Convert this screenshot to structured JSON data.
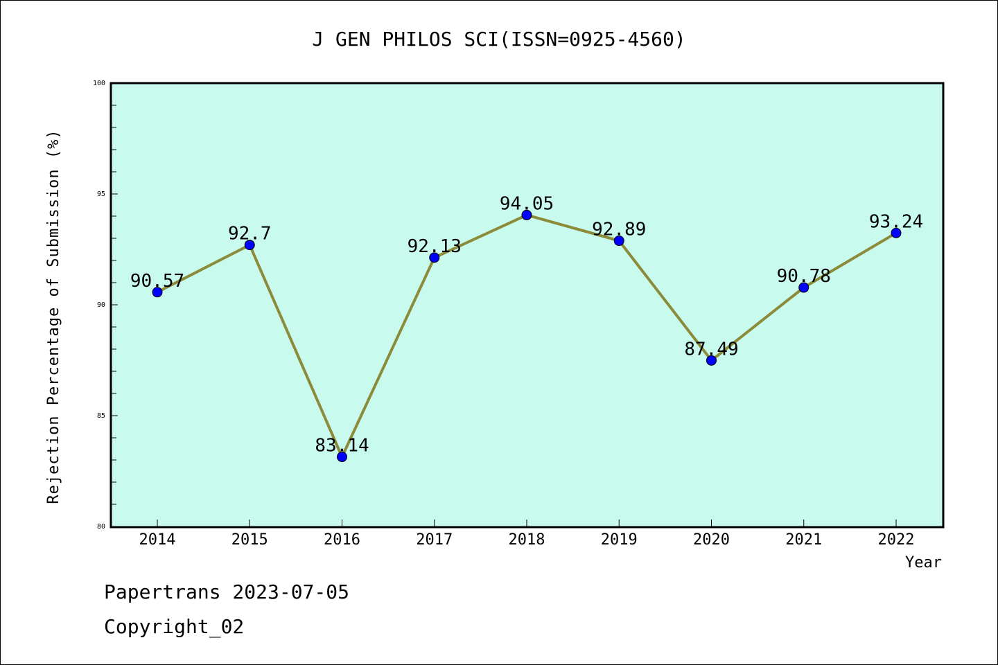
{
  "chart_data": {
    "type": "line",
    "title": "J GEN PHILOS SCI(ISSN=0925-4560)",
    "xlabel": "Year",
    "ylabel": "Rejection Percentage of Submission (%)",
    "categories": [
      "2014",
      "2015",
      "2016",
      "2017",
      "2018",
      "2019",
      "2020",
      "2021",
      "2022"
    ],
    "series": [
      {
        "values": [
          90.57,
          92.7,
          83.14,
          92.13,
          94.05,
          92.89,
          87.49,
          90.78,
          93.24
        ],
        "labels": [
          "90.57",
          "92.7",
          "83.14",
          "92.13",
          "94.05",
          "92.89",
          "87.49",
          "90.78",
          "93.24"
        ]
      }
    ],
    "ylim": [
      80,
      100
    ],
    "yticks": [
      "80",
      "85",
      "90",
      "95",
      "100"
    ],
    "colors": {
      "line": "#8B8B3A",
      "marker": "#0000FF",
      "plot_background": "#C8FBEE"
    },
    "grid": false,
    "legend": "none"
  },
  "footer": {
    "line1": "Papertrans 2023-07-05",
    "line2": "Copyright_02"
  }
}
